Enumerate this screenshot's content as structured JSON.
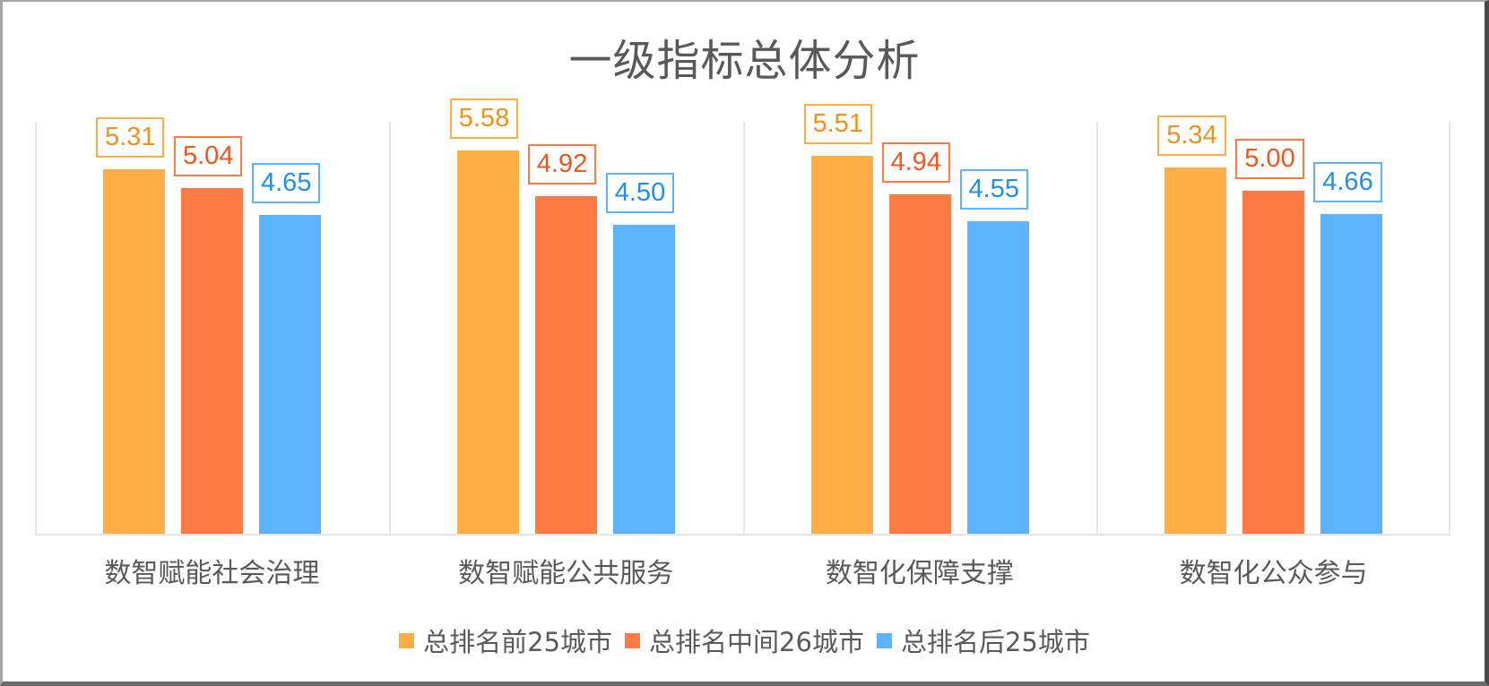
{
  "title": "一级指标总体分析",
  "colors": {
    "series_fill": [
      "#FFAE45",
      "#FF7A45",
      "#5DB3FF"
    ],
    "series_label_text": [
      "#F0921A",
      "#F0561E",
      "#1E8FF0"
    ],
    "series_label_border": [
      "#FFAE45",
      "#FF7A45",
      "#5DB3FF"
    ]
  },
  "legend": {
    "items": [
      {
        "label": "总排名前25城市",
        "color": "#FFAE45"
      },
      {
        "label": "总排名中间26城市",
        "color": "#FF7A45"
      },
      {
        "label": "总排名后25城市",
        "color": "#5DB3FF"
      }
    ]
  },
  "chart_data": {
    "type": "bar",
    "title": "一级指标总体分析",
    "categories": [
      "数智赋能社会治理",
      "数智赋能公共服务",
      "数智化保障支撑",
      "数智化公众参与"
    ],
    "series": [
      {
        "name": "总排名前25城市",
        "values": [
          5.31,
          5.58,
          5.51,
          5.34
        ],
        "color": "#FFAE45"
      },
      {
        "name": "总排名中间26城市",
        "values": [
          5.04,
          4.92,
          4.94,
          5.0
        ],
        "color": "#FF7A45"
      },
      {
        "name": "总排名后25城市",
        "values": [
          4.65,
          4.5,
          4.55,
          4.66
        ],
        "color": "#5DB3FF"
      }
    ],
    "data_labels": [
      [
        "5.31",
        "5.04",
        "4.65"
      ],
      [
        "5.58",
        "4.92",
        "4.50"
      ],
      [
        "5.51",
        "4.94",
        "4.55"
      ],
      [
        "5.34",
        "5.00",
        "4.66"
      ]
    ],
    "xlabel": "",
    "ylabel": "",
    "ylim": [
      0,
      6
    ],
    "grid": "vertical category separators",
    "legend_position": "bottom",
    "y_axis_visible": false
  }
}
